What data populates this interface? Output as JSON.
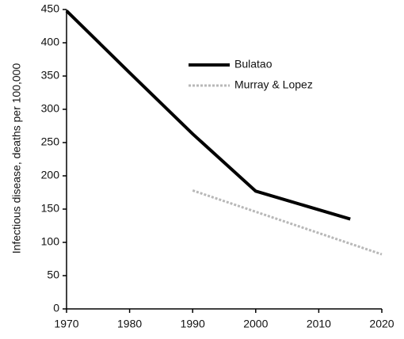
{
  "chart_data": {
    "type": "line",
    "y_label": "Infectious disease, deaths per 100,000",
    "series": [
      {
        "name": "Bulatao",
        "color": "#000000",
        "width": 4,
        "dash": null,
        "x": [
          1970,
          1980,
          1990,
          2000,
          2015
        ],
        "values": [
          448,
          355,
          263,
          177,
          135
        ]
      },
      {
        "name": "Murray & Lopez",
        "color": "#b8b8b8",
        "width": 3,
        "dash": "3,2",
        "x": [
          1990,
          2020
        ],
        "values": [
          178,
          82
        ]
      }
    ],
    "xlim": [
      1970,
      2020
    ],
    "xticks": [
      1970,
      1980,
      1990,
      2000,
      2010,
      2020
    ],
    "ylim": [
      0,
      450
    ],
    "yticks": [
      0,
      50,
      100,
      150,
      200,
      250,
      300,
      350,
      400,
      450
    ],
    "grid": false,
    "legend": "upper right"
  }
}
